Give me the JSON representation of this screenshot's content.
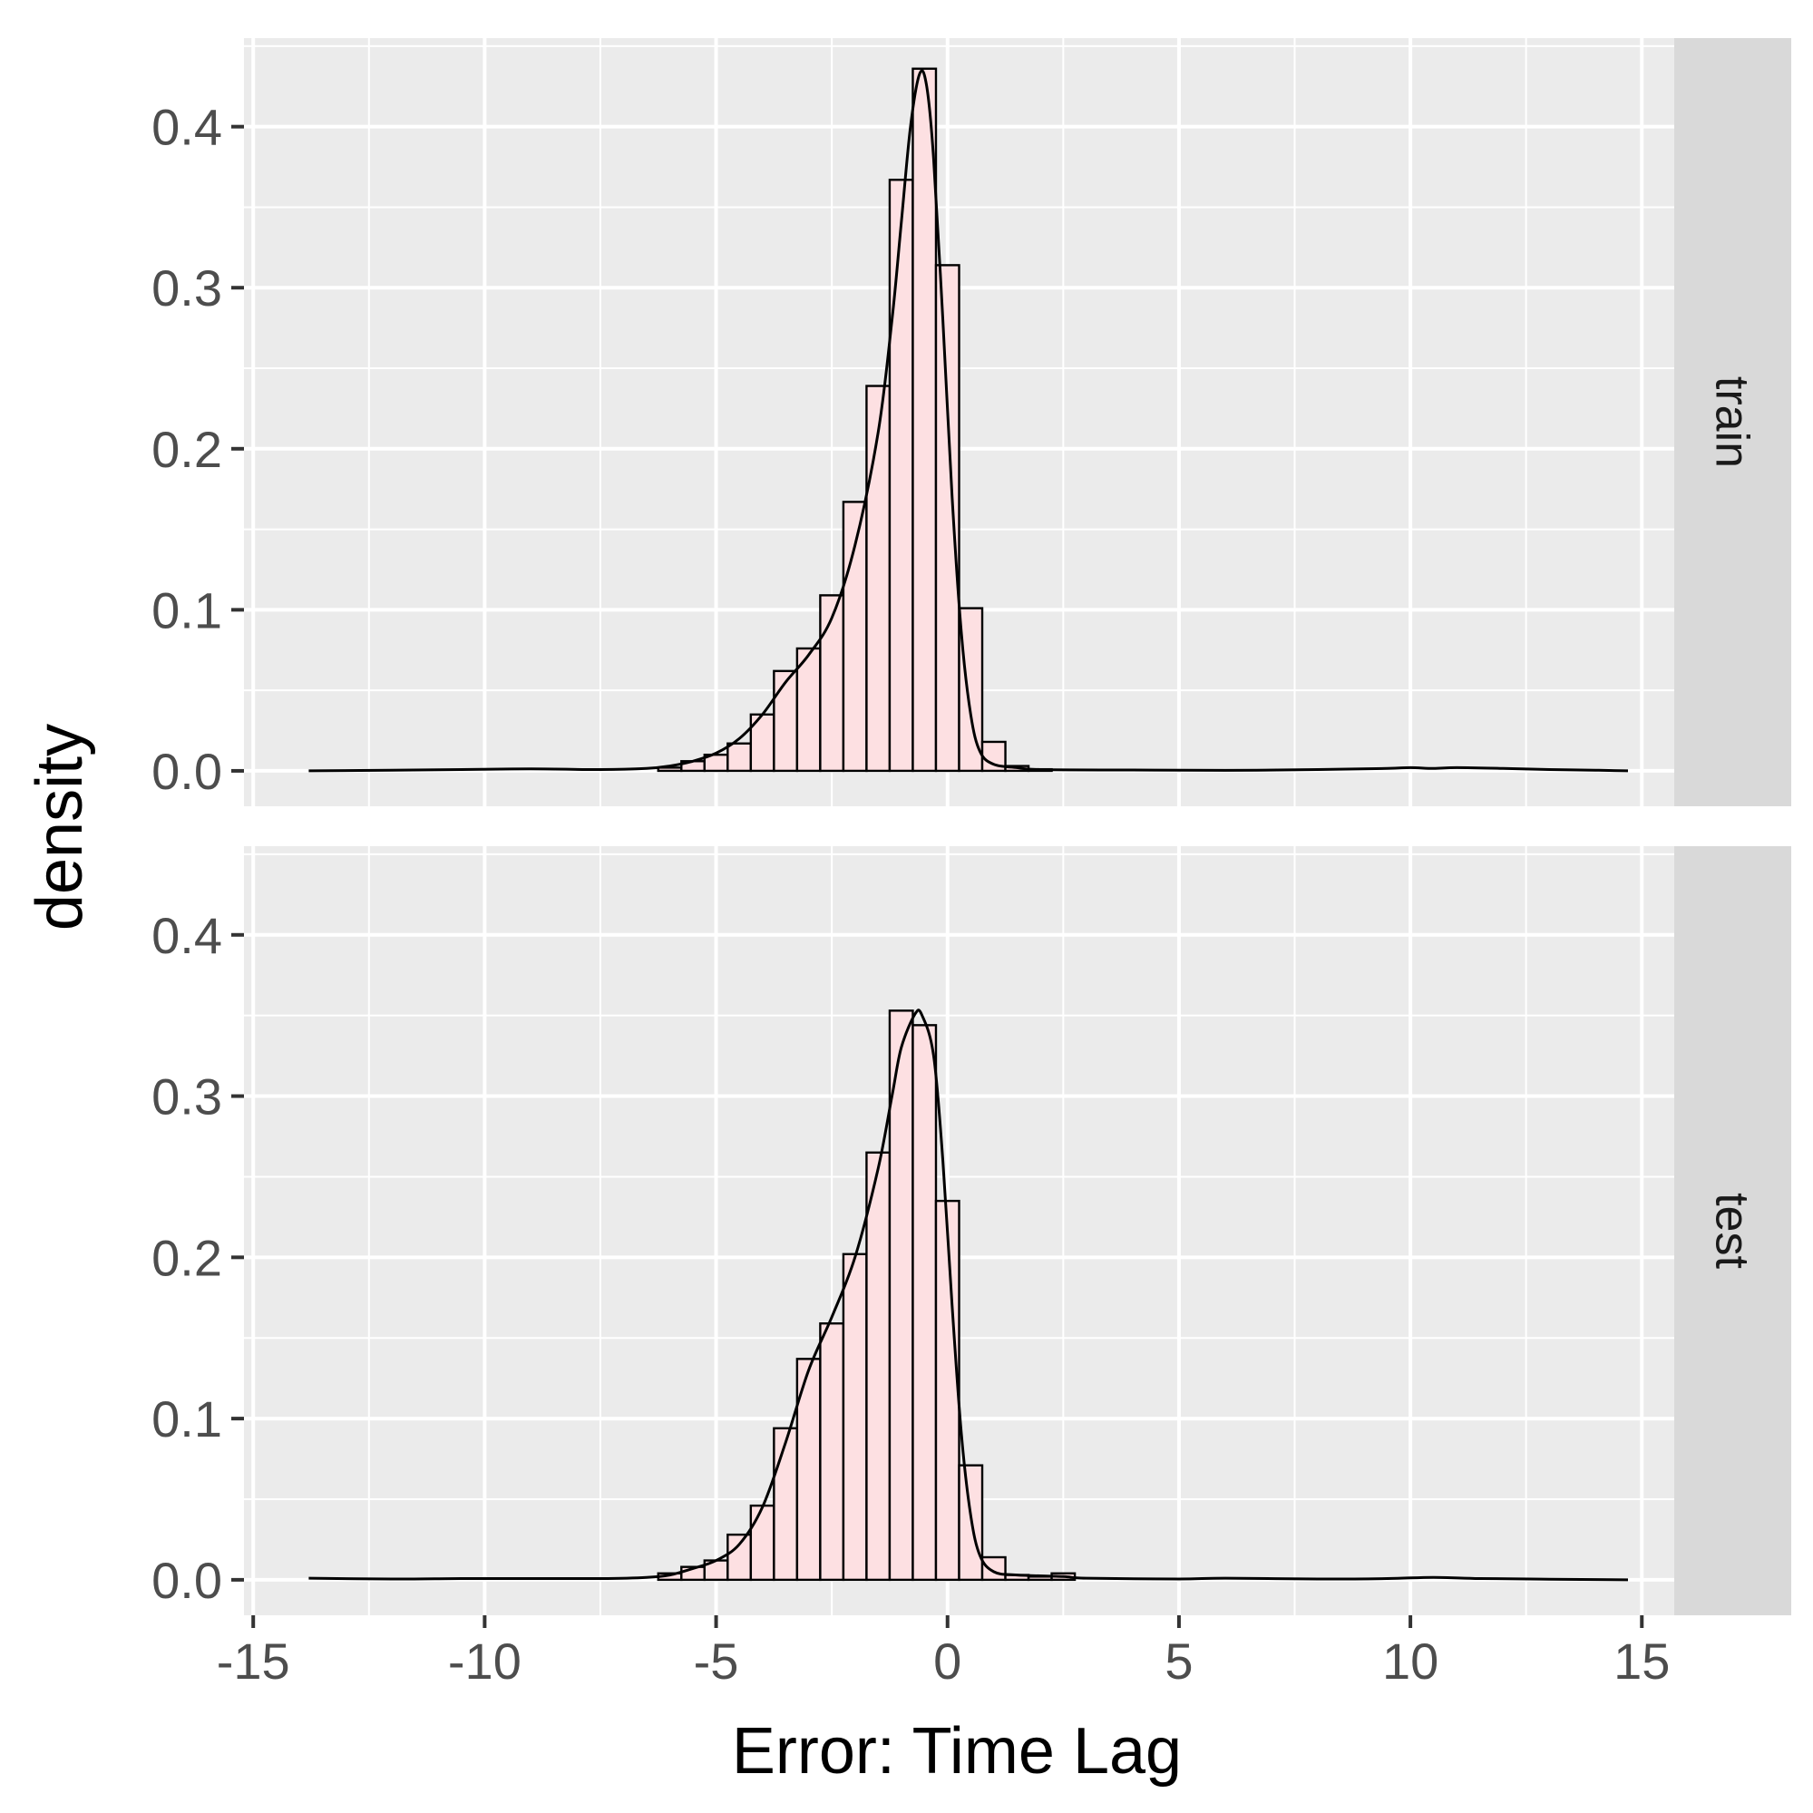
{
  "chart_data": {
    "type": "histogram",
    "xlabel": "Error: Time Lag",
    "ylabel": "density",
    "xlim": [
      -15.2,
      15.7
    ],
    "ylim": [
      -0.022,
      0.455
    ],
    "x_ticks": [
      -15,
      -10,
      -5,
      0,
      5,
      10,
      15
    ],
    "x_tick_labels": [
      "-15",
      "-10",
      "-5",
      "0",
      "5",
      "10",
      "15"
    ],
    "y_ticks": [
      0.0,
      0.1,
      0.2,
      0.3,
      0.4
    ],
    "y_tick_labels": [
      "0.0",
      "0.1",
      "0.2",
      "0.3",
      "0.4"
    ],
    "grid": true,
    "bin_width": 0.5,
    "bar_fill": "#fde0e2",
    "bar_stroke": "#000000",
    "panel_bg": "#ebebeb",
    "strip_bg": "#d9d9d9",
    "bin_centers": [
      -6.0,
      -5.5,
      -5.0,
      -4.5,
      -4.0,
      -3.5,
      -3.0,
      -2.5,
      -2.0,
      -1.5,
      -1.0,
      -0.5,
      0.0,
      0.5,
      1.0,
      1.5,
      2.0,
      2.5
    ],
    "panels": [
      {
        "name": "train",
        "values": [
          0.002,
          0.006,
          0.01,
          0.017,
          0.035,
          0.062,
          0.076,
          0.109,
          0.167,
          0.239,
          0.367,
          0.436,
          0.314,
          0.101,
          0.018,
          0.003,
          0.001,
          0.0
        ],
        "density": [
          [
            -13.8,
            0.0
          ],
          [
            -10.5,
            0.0008
          ],
          [
            -9.0,
            0.0012
          ],
          [
            -7.5,
            0.0008
          ],
          [
            -6.5,
            0.0015
          ],
          [
            -6.0,
            0.003
          ],
          [
            -5.5,
            0.006
          ],
          [
            -5.0,
            0.011
          ],
          [
            -4.5,
            0.02
          ],
          [
            -4.0,
            0.035
          ],
          [
            -3.5,
            0.055
          ],
          [
            -3.0,
            0.072
          ],
          [
            -2.5,
            0.095
          ],
          [
            -2.0,
            0.14
          ],
          [
            -1.5,
            0.21
          ],
          [
            -1.2,
            0.28
          ],
          [
            -1.0,
            0.34
          ],
          [
            -0.8,
            0.4
          ],
          [
            -0.6,
            0.433
          ],
          [
            -0.45,
            0.425
          ],
          [
            -0.3,
            0.38
          ],
          [
            -0.1,
            0.28
          ],
          [
            0.1,
            0.17
          ],
          [
            0.3,
            0.085
          ],
          [
            0.5,
            0.035
          ],
          [
            0.7,
            0.012
          ],
          [
            1.0,
            0.004
          ],
          [
            1.5,
            0.002
          ],
          [
            2.0,
            0.0008
          ],
          [
            4.0,
            0.0005
          ],
          [
            6.0,
            0.0003
          ],
          [
            8.0,
            0.0008
          ],
          [
            9.5,
            0.0015
          ],
          [
            10.0,
            0.002
          ],
          [
            10.5,
            0.0015
          ],
          [
            11.0,
            0.002
          ],
          [
            12.0,
            0.0015
          ],
          [
            13.0,
            0.0008
          ],
          [
            14.0,
            0.0004
          ],
          [
            14.7,
            0.0
          ]
        ]
      },
      {
        "name": "test",
        "values": [
          0.004,
          0.008,
          0.012,
          0.028,
          0.046,
          0.094,
          0.137,
          0.159,
          0.202,
          0.265,
          0.353,
          0.344,
          0.235,
          0.071,
          0.014,
          0.003,
          0.002,
          0.004
        ],
        "density": [
          [
            -13.8,
            0.001
          ],
          [
            -12.0,
            0.0005
          ],
          [
            -10.5,
            0.0008
          ],
          [
            -9.0,
            0.0008
          ],
          [
            -7.5,
            0.0008
          ],
          [
            -6.5,
            0.0015
          ],
          [
            -6.0,
            0.003
          ],
          [
            -5.5,
            0.007
          ],
          [
            -5.0,
            0.012
          ],
          [
            -4.5,
            0.022
          ],
          [
            -4.0,
            0.045
          ],
          [
            -3.5,
            0.085
          ],
          [
            -3.0,
            0.13
          ],
          [
            -2.5,
            0.163
          ],
          [
            -2.0,
            0.2
          ],
          [
            -1.5,
            0.255
          ],
          [
            -1.2,
            0.3
          ],
          [
            -1.0,
            0.33
          ],
          [
            -0.7,
            0.351
          ],
          [
            -0.55,
            0.35
          ],
          [
            -0.3,
            0.325
          ],
          [
            -0.1,
            0.26
          ],
          [
            0.1,
            0.17
          ],
          [
            0.3,
            0.09
          ],
          [
            0.5,
            0.04
          ],
          [
            0.7,
            0.015
          ],
          [
            1.0,
            0.005
          ],
          [
            1.5,
            0.003
          ],
          [
            2.5,
            0.002
          ],
          [
            3.0,
            0.001
          ],
          [
            5.0,
            0.0005
          ],
          [
            6.0,
            0.001
          ],
          [
            8.0,
            0.0005
          ],
          [
            9.5,
            0.0008
          ],
          [
            10.5,
            0.0015
          ],
          [
            11.5,
            0.0008
          ],
          [
            13.0,
            0.0004
          ],
          [
            14.7,
            0.0
          ]
        ]
      }
    ]
  }
}
